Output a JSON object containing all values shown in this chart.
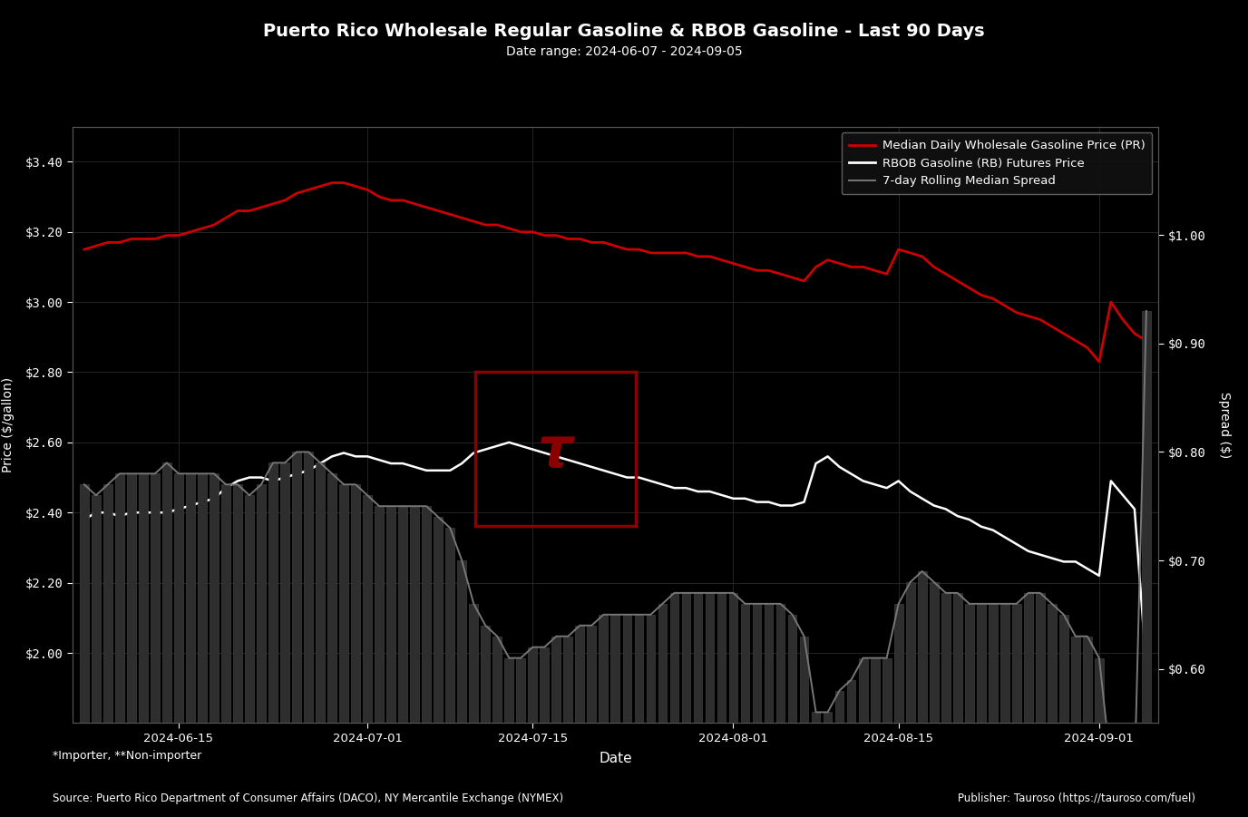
{
  "title": "Puerto Rico Wholesale Regular Gasoline & RBOB Gasoline - Last 90 Days",
  "subtitle": "Date range: 2024-06-07 - 2024-09-05",
  "xlabel": "Date",
  "ylabel_left": "Price ($/gallon)",
  "ylabel_right": "Spread ($)",
  "background_color": "#000000",
  "text_color": "#ffffff",
  "grid_color": "#2a2a2a",
  "source_text": "Source: Puerto Rico Department of Consumer Affairs (DACO), NY Mercantile Exchange (NYMEX)",
  "publisher_text": "Publisher: Tauroso (https://tauroso.com/fuel)",
  "footnote_text": "*Importer, **Non-importer",
  "legend_labels": [
    "Median Daily Wholesale Gasoline Price (PR)",
    "RBOB Gasoline (RB) Futures Price",
    "7-day Rolling Median Spread"
  ],
  "legend_colors": [
    "#cc0000",
    "#ffffff",
    "#888888"
  ],
  "dates": [
    "2024-06-07",
    "2024-06-08",
    "2024-06-09",
    "2024-06-10",
    "2024-06-11",
    "2024-06-12",
    "2024-06-13",
    "2024-06-14",
    "2024-06-15",
    "2024-06-16",
    "2024-06-17",
    "2024-06-18",
    "2024-06-19",
    "2024-06-20",
    "2024-06-21",
    "2024-06-22",
    "2024-06-23",
    "2024-06-24",
    "2024-06-25",
    "2024-06-26",
    "2024-06-27",
    "2024-06-28",
    "2024-06-29",
    "2024-06-30",
    "2024-07-01",
    "2024-07-02",
    "2024-07-03",
    "2024-07-04",
    "2024-07-05",
    "2024-07-06",
    "2024-07-07",
    "2024-07-08",
    "2024-07-09",
    "2024-07-10",
    "2024-07-11",
    "2024-07-12",
    "2024-07-13",
    "2024-07-14",
    "2024-07-15",
    "2024-07-16",
    "2024-07-17",
    "2024-07-18",
    "2024-07-19",
    "2024-07-20",
    "2024-07-21",
    "2024-07-22",
    "2024-07-23",
    "2024-07-24",
    "2024-07-25",
    "2024-07-26",
    "2024-07-27",
    "2024-07-28",
    "2024-07-29",
    "2024-07-30",
    "2024-07-31",
    "2024-08-01",
    "2024-08-02",
    "2024-08-03",
    "2024-08-04",
    "2024-08-05",
    "2024-08-06",
    "2024-08-07",
    "2024-08-08",
    "2024-08-09",
    "2024-08-10",
    "2024-08-11",
    "2024-08-12",
    "2024-08-13",
    "2024-08-14",
    "2024-08-15",
    "2024-08-16",
    "2024-08-17",
    "2024-08-18",
    "2024-08-19",
    "2024-08-20",
    "2024-08-21",
    "2024-08-22",
    "2024-08-23",
    "2024-08-24",
    "2024-08-25",
    "2024-08-26",
    "2024-08-27",
    "2024-08-28",
    "2024-08-29",
    "2024-08-30",
    "2024-08-31",
    "2024-09-01",
    "2024-09-02",
    "2024-09-03",
    "2024-09-04",
    "2024-09-05"
  ],
  "wholesale_price": [
    3.15,
    3.16,
    3.17,
    3.17,
    3.18,
    3.18,
    3.18,
    3.19,
    3.19,
    3.2,
    3.21,
    3.22,
    3.24,
    3.26,
    3.26,
    3.27,
    3.28,
    3.29,
    3.31,
    3.32,
    3.33,
    3.34,
    3.34,
    3.33,
    3.32,
    3.3,
    3.29,
    3.29,
    3.28,
    3.27,
    3.26,
    3.25,
    3.24,
    3.23,
    3.22,
    3.22,
    3.21,
    3.2,
    3.2,
    3.19,
    3.19,
    3.18,
    3.18,
    3.17,
    3.17,
    3.16,
    3.15,
    3.15,
    3.14,
    3.14,
    3.14,
    3.14,
    3.13,
    3.13,
    3.12,
    3.11,
    3.1,
    3.09,
    3.09,
    3.08,
    3.07,
    3.06,
    3.1,
    3.12,
    3.11,
    3.1,
    3.1,
    3.09,
    3.08,
    3.15,
    3.14,
    3.13,
    3.1,
    3.08,
    3.06,
    3.04,
    3.02,
    3.01,
    2.99,
    2.97,
    2.96,
    2.95,
    2.93,
    2.91,
    2.89,
    2.87,
    2.83,
    3.0,
    2.95,
    2.91,
    2.89
  ],
  "rbob_price": [
    2.38,
    2.4,
    2.4,
    2.39,
    2.4,
    2.4,
    2.4,
    2.4,
    2.41,
    2.42,
    2.43,
    2.44,
    2.47,
    2.49,
    2.5,
    2.5,
    2.49,
    2.5,
    2.51,
    2.52,
    2.54,
    2.56,
    2.57,
    2.56,
    2.56,
    2.55,
    2.54,
    2.54,
    2.53,
    2.52,
    2.52,
    2.52,
    2.54,
    2.57,
    2.58,
    2.59,
    2.6,
    2.59,
    2.58,
    2.57,
    2.56,
    2.55,
    2.54,
    2.53,
    2.52,
    2.51,
    2.5,
    2.5,
    2.49,
    2.48,
    2.47,
    2.47,
    2.46,
    2.46,
    2.45,
    2.44,
    2.44,
    2.43,
    2.43,
    2.42,
    2.42,
    2.43,
    2.54,
    2.56,
    2.53,
    2.51,
    2.49,
    2.48,
    2.47,
    2.49,
    2.46,
    2.44,
    2.42,
    2.41,
    2.39,
    2.38,
    2.36,
    2.35,
    2.33,
    2.31,
    2.29,
    2.28,
    2.27,
    2.26,
    2.26,
    2.24,
    2.22,
    2.49,
    2.45,
    2.41,
    1.96
  ],
  "spread": [
    0.77,
    0.76,
    0.77,
    0.78,
    0.78,
    0.78,
    0.78,
    0.79,
    0.78,
    0.78,
    0.78,
    0.78,
    0.77,
    0.77,
    0.76,
    0.77,
    0.79,
    0.79,
    0.8,
    0.8,
    0.79,
    0.78,
    0.77,
    0.77,
    0.76,
    0.75,
    0.75,
    0.75,
    0.75,
    0.75,
    0.74,
    0.73,
    0.7,
    0.66,
    0.64,
    0.63,
    0.61,
    0.61,
    0.62,
    0.62,
    0.63,
    0.63,
    0.64,
    0.64,
    0.65,
    0.65,
    0.65,
    0.65,
    0.65,
    0.66,
    0.67,
    0.67,
    0.67,
    0.67,
    0.67,
    0.67,
    0.66,
    0.66,
    0.66,
    0.66,
    0.65,
    0.63,
    0.56,
    0.56,
    0.58,
    0.59,
    0.61,
    0.61,
    0.61,
    0.66,
    0.68,
    0.69,
    0.68,
    0.67,
    0.67,
    0.66,
    0.66,
    0.66,
    0.66,
    0.66,
    0.67,
    0.67,
    0.66,
    0.65,
    0.63,
    0.63,
    0.61,
    0.51,
    0.5,
    0.5,
    0.93
  ],
  "bar_heights": [
    0.77,
    0.76,
    0.77,
    0.78,
    0.78,
    0.78,
    0.78,
    0.79,
    0.78,
    0.78,
    0.78,
    0.78,
    0.77,
    0.77,
    0.76,
    0.77,
    0.79,
    0.79,
    0.8,
    0.8,
    0.79,
    0.78,
    0.77,
    0.77,
    0.76,
    0.75,
    0.75,
    0.75,
    0.75,
    0.75,
    0.74,
    0.73,
    0.7,
    0.66,
    0.64,
    0.63,
    0.61,
    0.61,
    0.62,
    0.62,
    0.63,
    0.63,
    0.64,
    0.64,
    0.65,
    0.65,
    0.65,
    0.65,
    0.65,
    0.66,
    0.67,
    0.67,
    0.67,
    0.67,
    0.67,
    0.67,
    0.66,
    0.66,
    0.66,
    0.66,
    0.65,
    0.63,
    0.56,
    0.56,
    0.58,
    0.59,
    0.61,
    0.61,
    0.61,
    0.66,
    0.68,
    0.69,
    0.68,
    0.67,
    0.67,
    0.66,
    0.66,
    0.66,
    0.66,
    0.66,
    0.67,
    0.67,
    0.66,
    0.65,
    0.63,
    0.63,
    0.61,
    0.51,
    0.5,
    0.5,
    0.93
  ],
  "ylim_left": [
    1.8,
    3.5
  ],
  "ylim_right": [
    0.55,
    1.1
  ],
  "left_yticks": [
    2.0,
    2.2,
    2.4,
    2.6,
    2.8,
    3.0,
    3.2,
    3.4
  ],
  "right_yticks": [
    0.6,
    0.7,
    0.8,
    0.9,
    1.0
  ],
  "bar_color": "#2e2e2e",
  "bar_edge_color": "#484848",
  "watermark_color": "#5a0000"
}
